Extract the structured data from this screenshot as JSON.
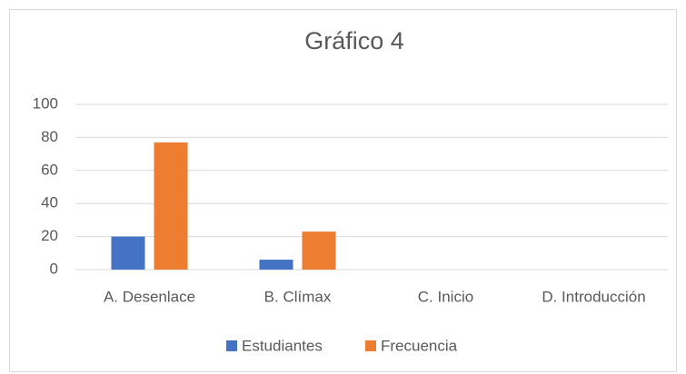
{
  "chart_data": {
    "type": "bar",
    "title": "Gráfico 4",
    "categories": [
      "A. Desenlace",
      "B. Clímax",
      "C. Inicio",
      "D. Introducción"
    ],
    "series": [
      {
        "name": "Estudiantes",
        "color": "#4472c4",
        "values": [
          20,
          6,
          0,
          0
        ]
      },
      {
        "name": "Frecuencia",
        "color": "#ed7d31",
        "values": [
          77,
          23,
          0,
          0
        ]
      }
    ],
    "ylim": [
      0,
      100
    ],
    "yticks": [
      0,
      20,
      40,
      60,
      80,
      100
    ],
    "grid": true,
    "legend": "bottom"
  }
}
